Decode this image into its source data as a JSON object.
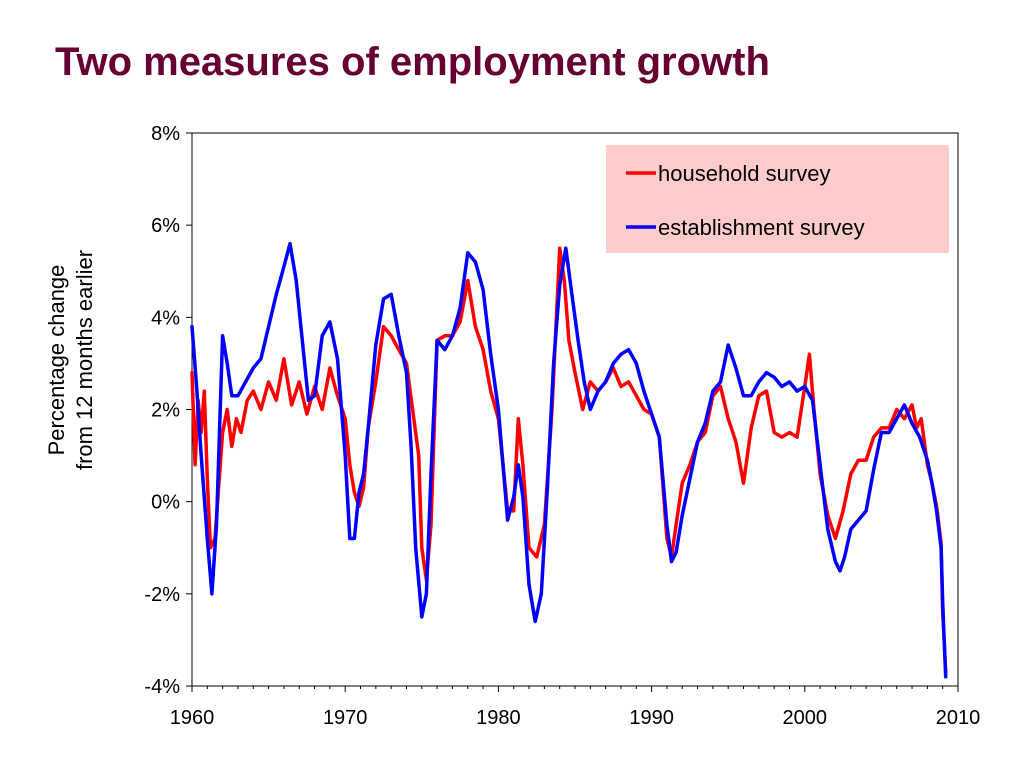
{
  "slide": {
    "title": "Two measures of employment growth"
  },
  "chart_data": {
    "type": "line",
    "title": "Two measures of employment growth",
    "ylabel": [
      "Percentage change",
      "from 12 months earlier"
    ],
    "xlim": [
      1960,
      2010
    ],
    "ylim": [
      -4,
      8
    ],
    "xticks": [
      1960,
      1970,
      1980,
      1990,
      2000,
      2010
    ],
    "xtick_labels": [
      "1960",
      "1970",
      "1980",
      "1990",
      "2000",
      "2010"
    ],
    "yticks": [
      -4,
      -2,
      0,
      2,
      4,
      6,
      8
    ],
    "ytick_labels": [
      "-4%",
      "-2%",
      "0%",
      "2%",
      "4%",
      "6%",
      "8%"
    ],
    "legend_position": "top-right",
    "legend_background": "#FFCCCC",
    "grid": false,
    "series": [
      {
        "name": "household survey",
        "color": "#FF0000",
        "x": [
          1960.0,
          1960.2,
          1960.4,
          1960.6,
          1960.8,
          1961.0,
          1961.2,
          1961.5,
          1961.8,
          1962.0,
          1962.3,
          1962.6,
          1962.9,
          1963.2,
          1963.6,
          1964.0,
          1964.5,
          1965.0,
          1965.5,
          1966.0,
          1966.5,
          1967.0,
          1967.5,
          1968.0,
          1968.5,
          1969.0,
          1969.5,
          1970.0,
          1970.3,
          1970.6,
          1970.9,
          1971.2,
          1971.5,
          1972.0,
          1972.5,
          1973.0,
          1973.5,
          1974.0,
          1974.4,
          1974.8,
          1975.0,
          1975.3,
          1975.6,
          1976.0,
          1976.5,
          1977.0,
          1977.5,
          1978.0,
          1978.5,
          1979.0,
          1979.5,
          1980.0,
          1980.3,
          1980.6,
          1981.0,
          1981.3,
          1981.6,
          1982.0,
          1982.5,
          1983.0,
          1983.5,
          1984.0,
          1984.3,
          1984.6,
          1985.0,
          1985.5,
          1986.0,
          1986.5,
          1987.0,
          1987.5,
          1988.0,
          1988.5,
          1989.0,
          1989.5,
          1990.0,
          1990.5,
          1991.0,
          1991.3,
          1991.6,
          1992.0,
          1992.5,
          1993.0,
          1993.5,
          1994.0,
          1994.5,
          1995.0,
          1995.5,
          1996.0,
          1996.5,
          1997.0,
          1997.5,
          1998.0,
          1998.5,
          1999.0,
          1999.5,
          2000.0,
          2000.3,
          2000.6,
          2001.0,
          2001.5,
          2002.0,
          2002.5,
          2003.0,
          2003.5,
          2004.0,
          2004.5,
          2005.0,
          2005.5,
          2006.0,
          2006.5,
          2007.0,
          2007.3,
          2007.6,
          2008.0,
          2008.3,
          2008.6,
          2008.9,
          2009.0,
          2009.2
        ],
        "values": [
          2.8,
          0.8,
          2.2,
          1.5,
          2.4,
          0.5,
          -1.0,
          -0.8,
          0.6,
          1.5,
          2.0,
          1.2,
          1.8,
          1.5,
          2.2,
          2.4,
          2.0,
          2.6,
          2.2,
          3.1,
          2.1,
          2.6,
          1.9,
          2.5,
          2.0,
          2.9,
          2.3,
          1.8,
          0.8,
          0.2,
          -0.1,
          0.3,
          1.6,
          2.6,
          3.8,
          3.6,
          3.3,
          3.0,
          2.0,
          1.0,
          -1.0,
          -1.7,
          -0.5,
          3.5,
          3.6,
          3.6,
          3.9,
          4.8,
          3.8,
          3.3,
          2.4,
          1.8,
          0.8,
          -0.2,
          -0.2,
          1.8,
          0.8,
          -1.0,
          -1.2,
          -0.5,
          2.0,
          5.5,
          4.8,
          3.5,
          2.8,
          2.0,
          2.6,
          2.4,
          2.6,
          2.9,
          2.5,
          2.6,
          2.3,
          2.0,
          1.9,
          1.4,
          -0.8,
          -1.2,
          -0.5,
          0.4,
          0.8,
          1.3,
          1.5,
          2.3,
          2.5,
          1.8,
          1.3,
          0.4,
          1.6,
          2.3,
          2.4,
          1.5,
          1.4,
          1.5,
          1.4,
          2.5,
          3.2,
          2.0,
          0.6,
          -0.3,
          -0.8,
          -0.2,
          0.6,
          0.9,
          0.9,
          1.4,
          1.6,
          1.6,
          2.0,
          1.8,
          2.1,
          1.6,
          1.8,
          0.8,
          0.4,
          -0.1,
          -0.9,
          -2.4,
          -3.7
        ]
      },
      {
        "name": "establishment survey",
        "color": "#0000FF",
        "x": [
          1960.0,
          1960.3,
          1960.6,
          1961.0,
          1961.3,
          1961.6,
          1962.0,
          1962.3,
          1962.6,
          1963.0,
          1963.5,
          1964.0,
          1964.5,
          1965.0,
          1965.5,
          1966.0,
          1966.4,
          1966.8,
          1967.2,
          1967.6,
          1968.0,
          1968.5,
          1969.0,
          1969.5,
          1970.0,
          1970.3,
          1970.6,
          1970.9,
          1971.2,
          1971.5,
          1972.0,
          1972.5,
          1973.0,
          1973.5,
          1974.0,
          1974.3,
          1974.6,
          1975.0,
          1975.3,
          1975.6,
          1976.0,
          1976.5,
          1977.0,
          1977.5,
          1978.0,
          1978.5,
          1979.0,
          1979.5,
          1980.0,
          1980.3,
          1980.6,
          1981.0,
          1981.3,
          1981.6,
          1982.0,
          1982.4,
          1982.8,
          1983.2,
          1983.6,
          1984.0,
          1984.4,
          1984.8,
          1985.2,
          1985.6,
          1986.0,
          1986.5,
          1987.0,
          1987.5,
          1988.0,
          1988.5,
          1989.0,
          1989.5,
          1990.0,
          1990.5,
          1991.0,
          1991.3,
          1991.6,
          1992.0,
          1992.5,
          1993.0,
          1993.5,
          1994.0,
          1994.5,
          1995.0,
          1995.5,
          1996.0,
          1996.5,
          1997.0,
          1997.5,
          1998.0,
          1998.5,
          1999.0,
          1999.5,
          2000.0,
          2000.5,
          2001.0,
          2001.5,
          2002.0,
          2002.3,
          2002.6,
          2003.0,
          2003.5,
          2004.0,
          2004.5,
          2005.0,
          2005.5,
          2006.0,
          2006.5,
          2007.0,
          2007.5,
          2008.0,
          2008.3,
          2008.6,
          2008.9,
          2009.0,
          2009.2
        ],
        "values": [
          3.8,
          2.5,
          1.0,
          -0.8,
          -2.0,
          -0.5,
          3.6,
          3.0,
          2.3,
          2.3,
          2.6,
          2.9,
          3.1,
          3.8,
          4.5,
          5.1,
          5.6,
          4.8,
          3.5,
          2.2,
          2.3,
          3.6,
          3.9,
          3.1,
          1.0,
          -0.8,
          -0.8,
          0.2,
          0.6,
          1.6,
          3.4,
          4.4,
          4.5,
          3.6,
          2.8,
          1.2,
          -1.0,
          -2.5,
          -2.0,
          0.6,
          3.5,
          3.3,
          3.6,
          4.2,
          5.4,
          5.2,
          4.6,
          3.2,
          2.0,
          0.8,
          -0.4,
          0.1,
          0.8,
          0.1,
          -1.8,
          -2.6,
          -2.0,
          0.3,
          3.0,
          4.7,
          5.5,
          4.5,
          3.5,
          2.6,
          2.0,
          2.4,
          2.6,
          3.0,
          3.2,
          3.3,
          3.0,
          2.4,
          1.9,
          1.4,
          -0.5,
          -1.3,
          -1.1,
          -0.3,
          0.5,
          1.3,
          1.7,
          2.4,
          2.6,
          3.4,
          2.9,
          2.3,
          2.3,
          2.6,
          2.8,
          2.7,
          2.5,
          2.6,
          2.4,
          2.5,
          2.2,
          0.8,
          -0.6,
          -1.3,
          -1.5,
          -1.2,
          -0.6,
          -0.4,
          -0.2,
          0.7,
          1.5,
          1.5,
          1.8,
          2.1,
          1.7,
          1.4,
          0.9,
          0.4,
          -0.2,
          -1.0,
          -2.2,
          -3.8
        ]
      }
    ]
  }
}
